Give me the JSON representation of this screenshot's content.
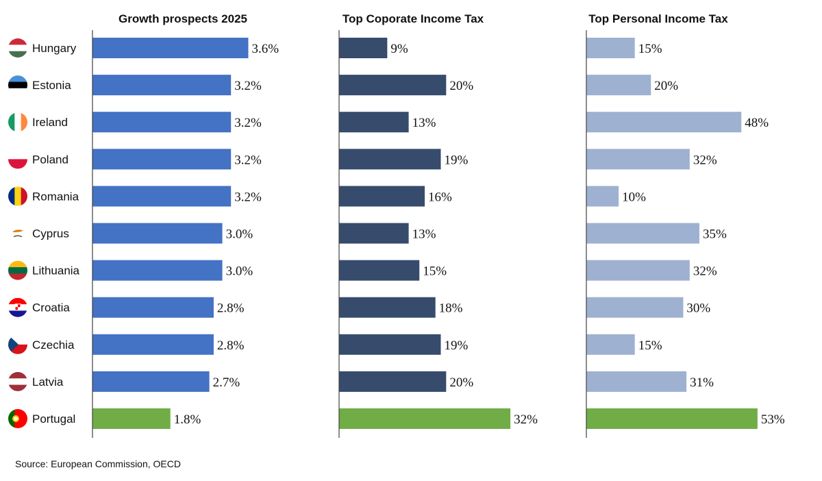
{
  "source": "Source: European Commission, OECD",
  "countries": [
    {
      "name": "Hungary",
      "flag": "hungary-flag-icon",
      "stripes": [
        "#CE2939",
        "#FFFFFF",
        "#477050"
      ]
    },
    {
      "name": "Estonia",
      "flag": "estonia-flag-icon",
      "stripes": [
        "#4891D9",
        "#000000",
        "#FFFFFF"
      ]
    },
    {
      "name": "Ireland",
      "flag": "ireland-flag-icon",
      "vstripes": [
        "#169B62",
        "#FFFFFF",
        "#FF883E"
      ]
    },
    {
      "name": "Poland",
      "flag": "poland-flag-icon",
      "stripes": [
        "#FFFFFF",
        "#DC143C"
      ]
    },
    {
      "name": "Romania",
      "flag": "romania-flag-icon",
      "vstripes": [
        "#002B7F",
        "#FCD116",
        "#CE1126"
      ]
    },
    {
      "name": "Cyprus",
      "flag": "cyprus-flag-icon",
      "stripes": [
        "#FFFFFF"
      ]
    },
    {
      "name": "Lithuania",
      "flag": "lithuania-flag-icon",
      "stripes": [
        "#FDB913",
        "#006A44",
        "#C1272D"
      ]
    },
    {
      "name": "Croatia",
      "flag": "croatia-flag-icon",
      "stripes": [
        "#FF0000",
        "#FFFFFF",
        "#171796"
      ]
    },
    {
      "name": "Czechia",
      "flag": "czechia-flag-icon",
      "stripes": [
        "#FFFFFF",
        "#D7141A"
      ]
    },
    {
      "name": "Latvia",
      "flag": "latvia-flag-icon",
      "stripes": [
        "#9E3039",
        "#FFFFFF",
        "#9E3039"
      ]
    },
    {
      "name": "Portugal",
      "flag": "portugal-flag-icon",
      "vstripes": [
        "#006600",
        "#FF0000",
        "#FF0000"
      ]
    }
  ],
  "chart_data": [
    {
      "type": "bar",
      "orientation": "horizontal",
      "title": "Growth prospects 2025",
      "categories": [
        "Hungary",
        "Estonia",
        "Ireland",
        "Poland",
        "Romania",
        "Cyprus",
        "Lithuania",
        "Croatia",
        "Czechia",
        "Latvia",
        "Portugal"
      ],
      "values": [
        3.6,
        3.2,
        3.2,
        3.2,
        3.2,
        3.0,
        3.0,
        2.8,
        2.8,
        2.7,
        1.8
      ],
      "labels": [
        "3.6%",
        "3.2%",
        "3.2%",
        "3.2%",
        "3.2%",
        "3.0%",
        "3.0%",
        "2.8%",
        "2.8%",
        "2.7%",
        "1.8%"
      ],
      "color": "#4472C4",
      "highlight_color": "#70AD47",
      "xlim": [
        0,
        4.7
      ]
    },
    {
      "type": "bar",
      "orientation": "horizontal",
      "title": "Top Coporate Income Tax",
      "categories": [
        "Hungary",
        "Estonia",
        "Ireland",
        "Poland",
        "Romania",
        "Cyprus",
        "Lithuania",
        "Croatia",
        "Czechia",
        "Latvia",
        "Portugal"
      ],
      "values": [
        9,
        20,
        13,
        19,
        16,
        13,
        15,
        18,
        19,
        20,
        32
      ],
      "labels": [
        "9%",
        "20%",
        "13%",
        "19%",
        "16%",
        "13%",
        "15%",
        "18%",
        "19%",
        "20%",
        "32%"
      ],
      "color": "#374C6C",
      "highlight_color": "#70AD47",
      "xlim": [
        0,
        38
      ]
    },
    {
      "type": "bar",
      "orientation": "horizontal",
      "title": "Top Personal Income Tax",
      "categories": [
        "Hungary",
        "Estonia",
        "Ireland",
        "Poland",
        "Romania",
        "Cyprus",
        "Lithuania",
        "Croatia",
        "Czechia",
        "Latvia",
        "Portugal"
      ],
      "values": [
        15,
        20,
        48,
        32,
        10,
        35,
        32,
        30,
        15,
        31,
        53
      ],
      "labels": [
        "15%",
        "20%",
        "48%",
        "32%",
        "10%",
        "35%",
        "32%",
        "30%",
        "15%",
        "31%",
        "53%"
      ],
      "color": "#9FB1D0",
      "highlight_color": "#70AD47",
      "xlim": [
        0,
        63
      ]
    }
  ]
}
